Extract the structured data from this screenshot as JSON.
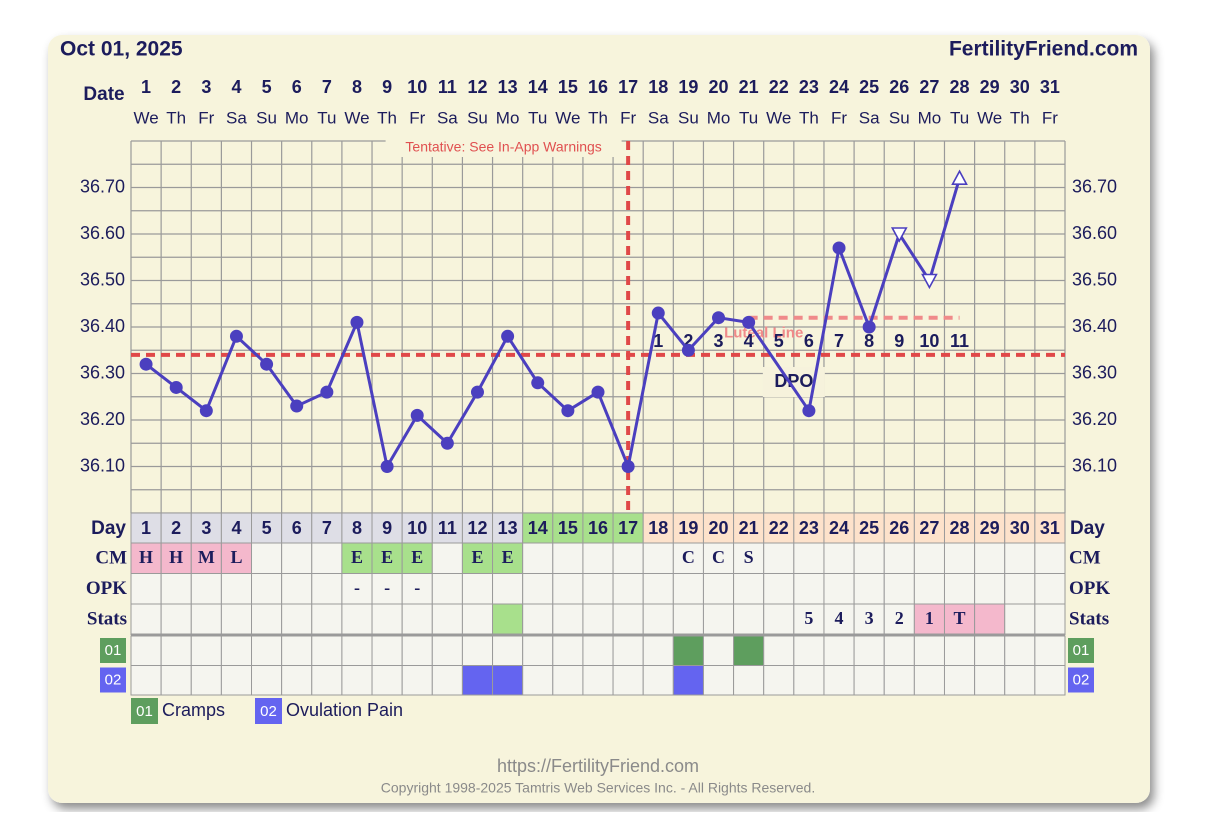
{
  "chart_data": {
    "type": "line",
    "date": "Oct 01, 2025",
    "site": "FertilityFriend.com",
    "date_label": "Date",
    "categories": [
      1,
      2,
      3,
      4,
      5,
      6,
      7,
      8,
      9,
      10,
      11,
      12,
      13,
      14,
      15,
      16,
      17,
      18,
      19,
      20,
      21,
      22,
      23,
      24,
      25,
      26,
      27,
      28,
      29,
      30,
      31
    ],
    "weekdays": [
      "We",
      "Th",
      "Fr",
      "Sa",
      "Su",
      "Mo",
      "Tu",
      "We",
      "Th",
      "Fr",
      "Sa",
      "Su",
      "Mo",
      "Tu",
      "We",
      "Th",
      "Fr",
      "Sa",
      "Su",
      "Mo",
      "Tu",
      "We",
      "Th",
      "Fr",
      "Sa",
      "Su",
      "Mo",
      "Tu",
      "We",
      "Th",
      "Fr"
    ],
    "ylim": [
      36.0,
      36.8
    ],
    "yticks": [
      {
        "value": 36.1,
        "label": "36.10"
      },
      {
        "value": 36.2,
        "label": "36.20"
      },
      {
        "value": 36.3,
        "label": "36.30"
      },
      {
        "value": 36.4,
        "label": "36.40"
      },
      {
        "value": 36.5,
        "label": "36.50"
      },
      {
        "value": 36.6,
        "label": "36.60"
      },
      {
        "value": 36.7,
        "label": "36.70"
      }
    ],
    "minor_yticks": [
      36.05,
      36.15,
      36.25,
      36.35,
      36.45,
      36.55,
      36.65,
      36.75
    ],
    "grid": true,
    "warning": "Tentative: See In-App Warnings",
    "series": [
      {
        "color": "#4b3fbf",
        "x": [
          1,
          2,
          3,
          4,
          5,
          6,
          7,
          8,
          9,
          10,
          11,
          12,
          13,
          14,
          15,
          16,
          17,
          18,
          19,
          20,
          21,
          23,
          24,
          25,
          26,
          27,
          28
        ],
        "values": [
          36.32,
          36.27,
          36.22,
          36.38,
          36.32,
          36.23,
          36.26,
          36.41,
          36.1,
          36.21,
          36.15,
          36.26,
          36.38,
          36.28,
          36.22,
          36.26,
          36.1,
          36.43,
          36.35,
          36.42,
          36.41,
          36.22,
          36.57,
          36.4,
          36.6,
          36.5,
          36.72
        ],
        "markers": [
          "circle",
          "circle",
          "circle",
          "circle",
          "circle",
          "circle",
          "circle",
          "circle",
          "circle",
          "circle",
          "circle",
          "circle",
          "circle",
          "circle",
          "circle",
          "circle",
          "circle",
          "circle",
          "circle",
          "circle",
          "circle",
          "circle",
          "circle",
          "circle",
          "triangle-down",
          "triangle-down",
          "triangle-up"
        ]
      }
    ],
    "coverline": {
      "value": 36.34,
      "color": "#e04848"
    },
    "ovulation_day": 17,
    "luteal_line": {
      "label": "Luteal Line",
      "value": 36.42,
      "from": 21,
      "to": 28,
      "color": "#f08a8a"
    },
    "dpo": {
      "label": "DPO",
      "days": [
        18,
        19,
        20,
        21,
        22,
        23,
        24,
        25,
        26,
        27,
        28
      ],
      "values": [
        1,
        2,
        3,
        4,
        5,
        6,
        7,
        8,
        9,
        10,
        11
      ]
    }
  },
  "table": {
    "day_label": "Day",
    "phases": [
      {
        "from": 1,
        "to": 13,
        "color": "#dedee6"
      },
      {
        "from": 14,
        "to": 17,
        "color": "#a8e08c"
      },
      {
        "from": 18,
        "to": 31,
        "color": "#fde2cb"
      }
    ],
    "rows": [
      {
        "label": "CM",
        "entries": [
          {
            "day": 1,
            "text": "H",
            "color": "#f4b8cc"
          },
          {
            "day": 2,
            "text": "H",
            "color": "#f4b8cc"
          },
          {
            "day": 3,
            "text": "M",
            "color": "#f4b8cc"
          },
          {
            "day": 4,
            "text": "L",
            "color": "#f4b8cc"
          },
          {
            "day": 8,
            "text": "E",
            "color": "#a8e08c"
          },
          {
            "day": 9,
            "text": "E",
            "color": "#a8e08c"
          },
          {
            "day": 10,
            "text": "E",
            "color": "#a8e08c"
          },
          {
            "day": 12,
            "text": "E",
            "color": "#a8e08c"
          },
          {
            "day": 13,
            "text": "E",
            "color": "#a8e08c"
          },
          {
            "day": 19,
            "text": "C"
          },
          {
            "day": 20,
            "text": "C"
          },
          {
            "day": 21,
            "text": "S"
          }
        ]
      },
      {
        "label": "OPK",
        "entries": [
          {
            "day": 8,
            "text": "-"
          },
          {
            "day": 9,
            "text": "-"
          },
          {
            "day": 10,
            "text": "-"
          }
        ]
      },
      {
        "label": "Stats",
        "entries": [
          {
            "day": 13,
            "color": "#a8e08c"
          },
          {
            "day": 23,
            "text": "5"
          },
          {
            "day": 24,
            "text": "4"
          },
          {
            "day": 25,
            "text": "3"
          },
          {
            "day": 26,
            "text": "2"
          },
          {
            "day": 27,
            "text": "1",
            "color": "#f4b8cc"
          },
          {
            "day": 28,
            "text": "T",
            "color": "#f4b8cc"
          },
          {
            "day": 29,
            "color": "#f4b8cc"
          }
        ]
      }
    ],
    "symptoms": [
      {
        "code": "01",
        "name": "Cramps",
        "color": "#5e9e5e",
        "days": [
          19,
          21
        ]
      },
      {
        "code": "02",
        "name": "Ovulation Pain",
        "color": "#6464f0",
        "days": [
          12,
          13,
          19
        ]
      }
    ]
  },
  "footer": {
    "url": "https://FertilityFriend.com",
    "copyright": "Copyright 1998-2025 Tamtris Web Services Inc. - All Rights Reserved."
  }
}
